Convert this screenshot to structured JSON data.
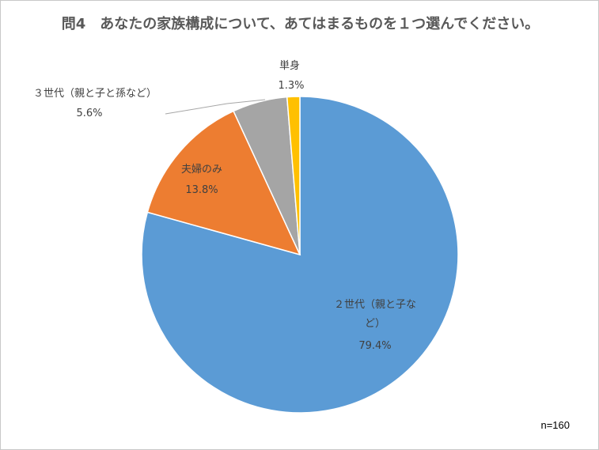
{
  "chart_data": {
    "type": "pie",
    "title": "問4　あなたの家族構成について、あてはまるものを１つ選んでください。",
    "slices": [
      {
        "label": "２世代（親と子など）",
        "value": 79.4,
        "display": "79.4%",
        "color": "#5B9BD5"
      },
      {
        "label": "夫婦のみ",
        "value": 13.8,
        "display": "13.8%",
        "color": "#ED7D31"
      },
      {
        "label": "３世代（親と子と孫など）",
        "value": 5.6,
        "display": "5.6%",
        "color": "#A5A5A5"
      },
      {
        "label": "単身",
        "value": 1.3,
        "display": "1.3%",
        "color": "#FFC000"
      }
    ],
    "order": "clockwise from 12 o'clock",
    "note": "n=160"
  }
}
